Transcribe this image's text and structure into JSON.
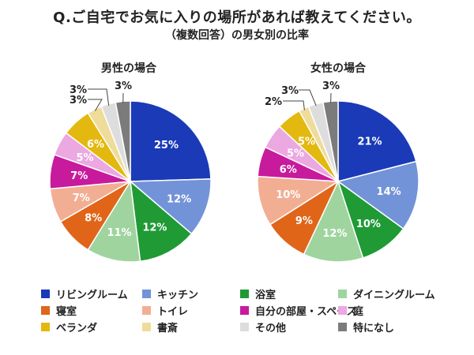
{
  "title": "Q.ご自宅でお気に入りの場所があれば教えてください。",
  "subtitle": "（複数回答）の男女別の比率",
  "chart_data": [
    {
      "type": "pie",
      "title": "男性の場合",
      "unit": "%",
      "slices": [
        {
          "label": "リビングルーム",
          "value": 25,
          "color": "#1a3ab8"
        },
        {
          "label": "キッチン",
          "value": 12,
          "color": "#7393d8"
        },
        {
          "label": "浴室",
          "value": 12,
          "color": "#1f9a35"
        },
        {
          "label": "ダイニングルーム",
          "value": 11,
          "color": "#9fd49e"
        },
        {
          "label": "寝室",
          "value": 8,
          "color": "#e06519"
        },
        {
          "label": "トイレ",
          "value": 7,
          "color": "#f2ae93"
        },
        {
          "label": "自分の部屋・スペース",
          "value": 7,
          "color": "#c81a9d"
        },
        {
          "label": "庭",
          "value": 5,
          "color": "#eba8e1"
        },
        {
          "label": "ベランダ",
          "value": 6,
          "color": "#e3b80f"
        },
        {
          "label": "書斎",
          "value": 3,
          "color": "#efdc9a"
        },
        {
          "label": "その他",
          "value": 3,
          "color": "#dddddd"
        },
        {
          "label": "特になし",
          "value": 3,
          "color": "#7b7b7b"
        }
      ]
    },
    {
      "type": "pie",
      "title": "女性の場合",
      "unit": "%",
      "slices": [
        {
          "label": "リビングルーム",
          "value": 21,
          "color": "#1a3ab8"
        },
        {
          "label": "キッチン",
          "value": 14,
          "color": "#7393d8"
        },
        {
          "label": "浴室",
          "value": 10,
          "color": "#1f9a35"
        },
        {
          "label": "ダイニングルーム",
          "value": 12,
          "color": "#9fd49e"
        },
        {
          "label": "寝室",
          "value": 9,
          "color": "#e06519"
        },
        {
          "label": "トイレ",
          "value": 10,
          "color": "#f2ae93"
        },
        {
          "label": "自分の部屋・スペース",
          "value": 6,
          "color": "#c81a9d"
        },
        {
          "label": "庭",
          "value": 5,
          "color": "#eba8e1"
        },
        {
          "label": "ベランダ",
          "value": 5,
          "color": "#e3b80f"
        },
        {
          "label": "書斎",
          "value": 2,
          "color": "#efdc9a"
        },
        {
          "label": "その他",
          "value": 3,
          "color": "#dddddd"
        },
        {
          "label": "特になし",
          "value": 3,
          "color": "#7b7b7b"
        }
      ]
    }
  ],
  "legend": [
    {
      "label": "リビングルーム",
      "color": "#1a3ab8"
    },
    {
      "label": "キッチン",
      "color": "#7393d8"
    },
    {
      "label": "浴室",
      "color": "#1f9a35"
    },
    {
      "label": "ダイニングルーム",
      "color": "#9fd49e"
    },
    {
      "label": "寝室",
      "color": "#e06519"
    },
    {
      "label": "トイレ",
      "color": "#f2ae93"
    },
    {
      "label": "自分の部屋・スペース",
      "color": "#c81a9d"
    },
    {
      "label": "庭",
      "color": "#eba8e1"
    },
    {
      "label": "ベランダ",
      "color": "#e3b80f"
    },
    {
      "label": "書斎",
      "color": "#efdc9a"
    },
    {
      "label": "その他",
      "color": "#dddddd"
    },
    {
      "label": "特になし",
      "color": "#7b7b7b"
    }
  ]
}
